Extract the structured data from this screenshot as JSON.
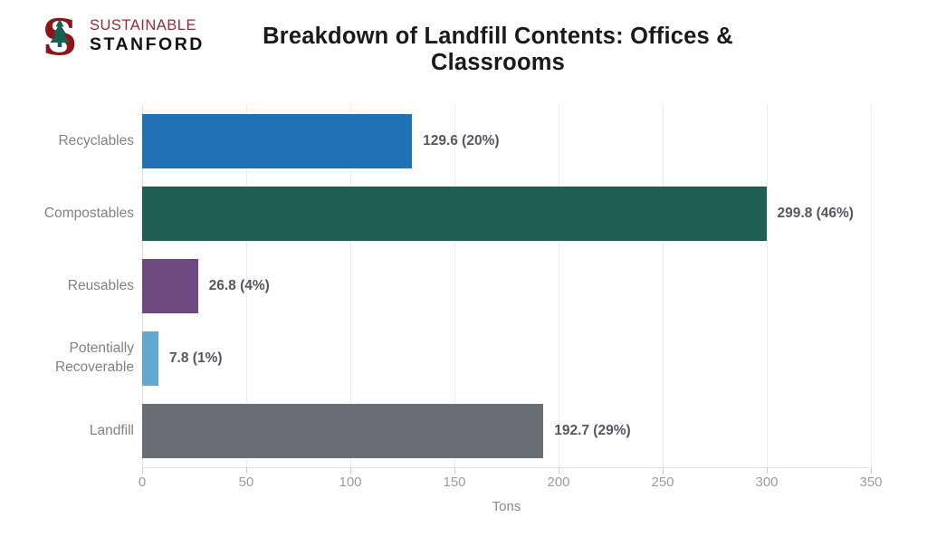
{
  "header": {
    "logo": {
      "letter": "S",
      "line1": "SUSTAINABLE",
      "line2": "STANFORD",
      "cardinal_red": "#8C1515",
      "line1_color": "#9A2A36",
      "tree_green": "#175E54"
    },
    "title": "Breakdown of Landfill Contents: Offices & Classrooms"
  },
  "chart_data": {
    "type": "bar",
    "orientation": "horizontal",
    "title": "Breakdown of Landfill Contents: Offices & Classrooms",
    "xlabel": "Tons",
    "xlim": [
      0,
      350
    ],
    "xticks": [
      0,
      50,
      100,
      150,
      200,
      250,
      300,
      350
    ],
    "categories": [
      "Recyclables",
      "Compostables",
      "Reusables",
      "Potentially Recoverable",
      "Landfill"
    ],
    "values": [
      129.6,
      299.8,
      26.8,
      7.8,
      192.7
    ],
    "percentages": [
      20,
      46,
      4,
      1,
      29
    ],
    "value_labels": [
      "129.6 (20%)",
      "299.8 (46%)",
      "26.8 (4%)",
      "7.8 (1%)",
      "192.7 (29%)"
    ],
    "bar_colors": [
      "#1F72B5",
      "#1D5F50",
      "#6F4A80",
      "#61A9D1",
      "#696E75"
    ],
    "grid": true,
    "legend": false,
    "value_label_position": "right-of-bar"
  }
}
